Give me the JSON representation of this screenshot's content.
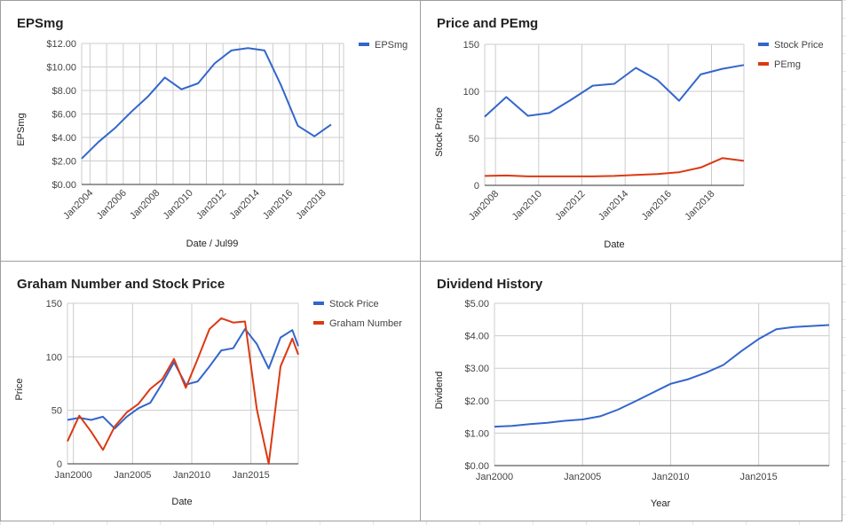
{
  "colors": {
    "blue": "#3366cc",
    "red": "#dc3912"
  },
  "chart_data": [
    {
      "type": "line",
      "title": "EPSmg",
      "xlabel": "Date / Jul99",
      "ylabel": "EPSmg",
      "x_tick_labels": [
        "Jan2004",
        "Jan2006",
        "Jan2008",
        "Jan2010",
        "Jan2012",
        "Jan2014",
        "Jan2016",
        "Jan2018"
      ],
      "y_tick_labels": [
        "$12.00",
        "$10.00",
        "$8.00",
        "$6.00",
        "$4.00",
        "$2.00",
        "$0.00"
      ],
      "ylim": [
        0,
        12
      ],
      "xlim": [
        2003.5,
        2019.25
      ],
      "legend_position": "top-right",
      "x": [
        2003.5,
        2004.5,
        2005.5,
        2006.5,
        2007.5,
        2008.5,
        2009.5,
        2010.5,
        2011.5,
        2012.5,
        2013.5,
        2014.5,
        2015.5,
        2016.5,
        2017.5,
        2018.5
      ],
      "series": [
        {
          "name": "EPSmg",
          "color": "#3366cc",
          "values": [
            2.2,
            3.6,
            4.8,
            6.2,
            7.5,
            9.1,
            8.1,
            8.6,
            10.3,
            11.4,
            11.6,
            11.4,
            8.4,
            5.0,
            4.1,
            5.1
          ]
        }
      ]
    },
    {
      "type": "line",
      "title": "Price and PEmg",
      "xlabel": "Date",
      "ylabel": "Stock Price",
      "x_tick_labels": [
        "Jan2008",
        "Jan2010",
        "Jan2012",
        "Jan2014",
        "Jan2016",
        "Jan2018"
      ],
      "y_tick_labels": [
        "150",
        "100",
        "50",
        "0"
      ],
      "ylim": [
        0,
        150
      ],
      "xlim": [
        2007.5,
        2019.5
      ],
      "legend_position": "top-right",
      "x": [
        2007.5,
        2008.5,
        2009.5,
        2010.5,
        2011.5,
        2012.5,
        2013.5,
        2014.5,
        2015.5,
        2016.5,
        2017.5,
        2018.5,
        2019.5
      ],
      "series": [
        {
          "name": "Stock Price",
          "color": "#3366cc",
          "values": [
            73,
            94,
            74,
            77,
            91,
            106,
            108,
            125,
            112,
            90,
            118,
            124,
            128
          ]
        },
        {
          "name": "PEmg",
          "color": "#dc3912",
          "values": [
            10,
            10.5,
            9.5,
            9.5,
            9.5,
            9.5,
            10,
            11,
            12,
            14,
            19,
            29,
            26
          ]
        }
      ]
    },
    {
      "type": "line",
      "title": "Graham Number and Stock Price",
      "xlabel": "Date",
      "ylabel": "Price",
      "x_tick_labels": [
        "Jan2000",
        "Jan2005",
        "Jan2010",
        "Jan2015"
      ],
      "y_tick_labels": [
        "150",
        "100",
        "50",
        "0"
      ],
      "ylim": [
        0,
        150
      ],
      "xlim": [
        1999.5,
        2019
      ],
      "legend_position": "top-right",
      "x": [
        1999.5,
        2000.5,
        2001.5,
        2002.5,
        2003.5,
        2004.5,
        2005.5,
        2006.5,
        2007.5,
        2008.5,
        2009.5,
        2010.5,
        2011.5,
        2012.5,
        2013.5,
        2014.5,
        2015.5,
        2016.5,
        2017.5,
        2018.5,
        2019
      ],
      "series": [
        {
          "name": "Stock Price",
          "color": "#3366cc",
          "values": [
            41,
            43,
            41,
            44,
            33,
            44,
            52,
            57,
            75,
            95,
            74,
            77,
            91,
            106,
            108,
            126,
            112,
            89,
            118,
            125,
            110
          ]
        },
        {
          "name": "Graham Number",
          "color": "#dc3912",
          "values": [
            21,
            45,
            30,
            13,
            35,
            48,
            56,
            70,
            79,
            98,
            71,
            98,
            126,
            136,
            132,
            133,
            51,
            0,
            91,
            117,
            102
          ]
        }
      ]
    },
    {
      "type": "line",
      "title": "Dividend History",
      "xlabel": "Year",
      "ylabel": "Dividend",
      "x_tick_labels": [
        "Jan2000",
        "Jan2005",
        "Jan2010",
        "Jan2015"
      ],
      "y_tick_labels": [
        "$5.00",
        "$4.00",
        "$3.00",
        "$2.00",
        "$1.00",
        "$0.00"
      ],
      "ylim": [
        0,
        5
      ],
      "xlim": [
        2000,
        2019
      ],
      "legend_position": "none",
      "x": [
        2000,
        2001,
        2002,
        2003,
        2004,
        2005,
        2006,
        2007,
        2008,
        2009,
        2010,
        2011,
        2012,
        2013,
        2014,
        2015,
        2016,
        2017,
        2018,
        2019
      ],
      "series": [
        {
          "name": "",
          "color": "#3366cc",
          "values": [
            1.2,
            1.22,
            1.28,
            1.32,
            1.38,
            1.42,
            1.52,
            1.72,
            1.98,
            2.25,
            2.52,
            2.66,
            2.86,
            3.1,
            3.52,
            3.9,
            4.2,
            4.27,
            4.3,
            4.33
          ]
        }
      ]
    }
  ]
}
